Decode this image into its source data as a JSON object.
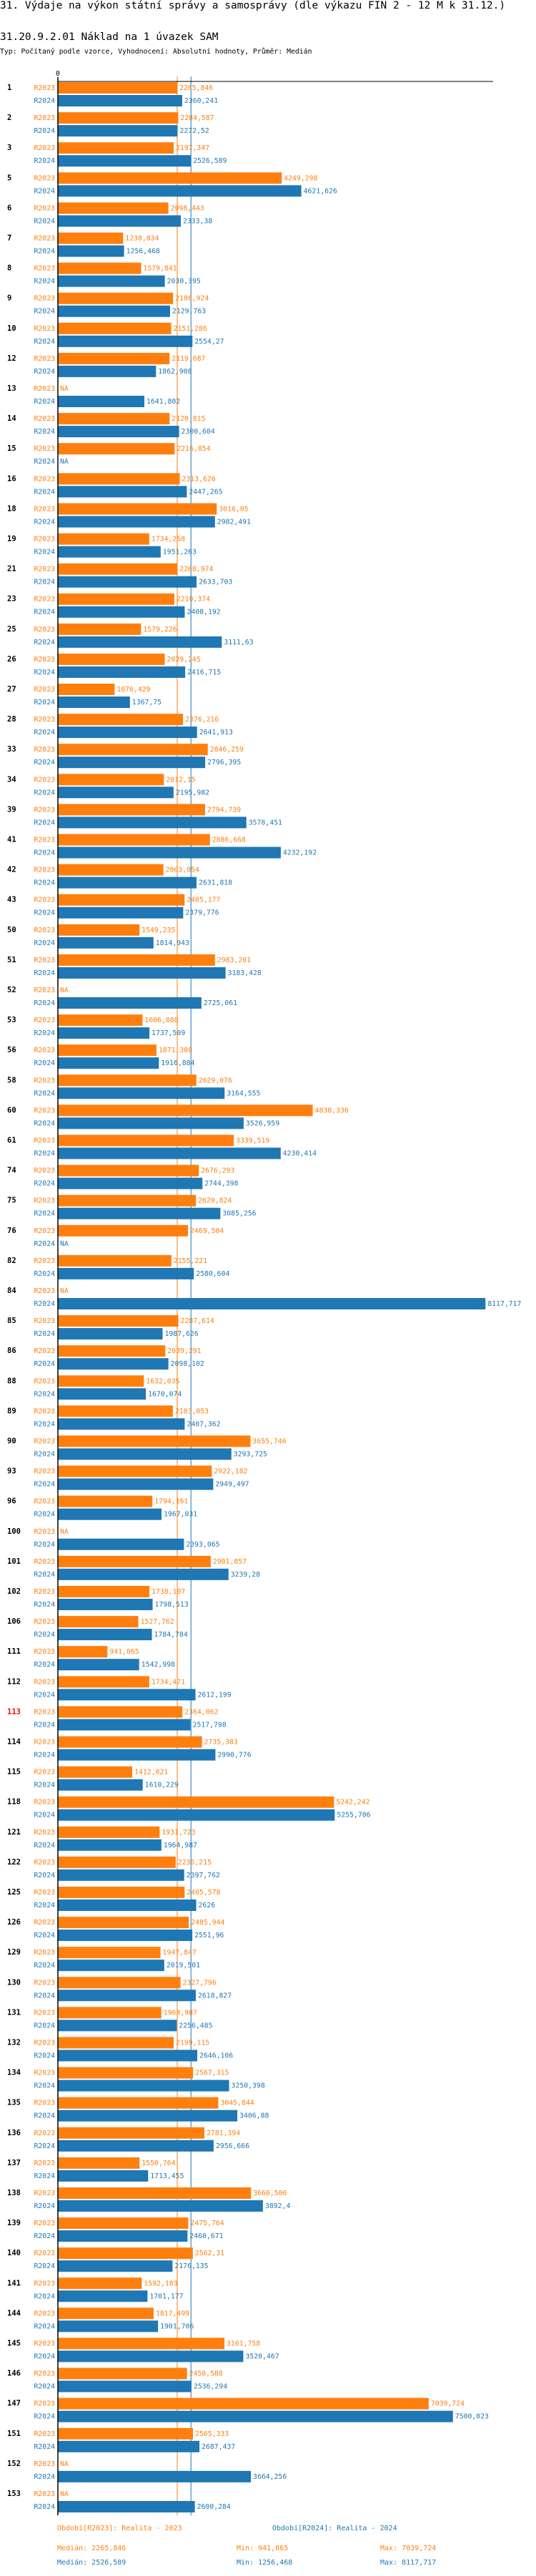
{
  "header": {
    "title": "31. Výdaje na výkon státní správy a samosprávy (dle výkazu FIN 2 - 12 M k 31.12.)",
    "subtitle": "31.20.9.2.01 Náklad na 1 úvazek SAM",
    "type_line": "Typ: Počítaný podle vzorce, Vyhodnocení: Absolutní hodnoty, Průměr: Medián"
  },
  "colors": {
    "R2023": "#ff7f0e",
    "R2024": "#1f77b4",
    "highlight": "#ff0000"
  },
  "legend": {
    "r2023": "Období[R2023]: Realita - 2023",
    "r2024": "Období[R2024]: Realita - 2024",
    "r2023_median": "Medián: 2265,846",
    "r2023_min": "Min: 941,065",
    "r2023_max": "Max: 7039,724",
    "r2024_median": "Medián: 2526,589",
    "r2024_min": "Min: 1256,468",
    "r2024_max": "Max: 8117,717"
  },
  "chart_data": {
    "type": "bar",
    "orientation": "horizontal",
    "zero_label": "0",
    "na_label": "NA",
    "highlight_category": "113",
    "medians": {
      "R2023": 2265.846,
      "R2024": 2526.589
    },
    "xlim": [
      0,
      8117.717
    ],
    "grid": false,
    "legend_position": "bottom",
    "categories": [
      "1",
      "2",
      "3",
      "5",
      "6",
      "7",
      "8",
      "9",
      "10",
      "12",
      "13",
      "14",
      "15",
      "16",
      "18",
      "19",
      "21",
      "23",
      "25",
      "26",
      "27",
      "28",
      "33",
      "34",
      "39",
      "41",
      "42",
      "43",
      "50",
      "51",
      "52",
      "53",
      "56",
      "58",
      "60",
      "61",
      "74",
      "75",
      "76",
      "82",
      "84",
      "85",
      "86",
      "88",
      "89",
      "90",
      "93",
      "96",
      "100",
      "101",
      "102",
      "106",
      "111",
      "112",
      "113",
      "114",
      "115",
      "118",
      "121",
      "122",
      "125",
      "126",
      "129",
      "130",
      "131",
      "132",
      "134",
      "135",
      "136",
      "137",
      "138",
      "139",
      "140",
      "141",
      "144",
      "145",
      "146",
      "147",
      "151",
      "152",
      "153"
    ],
    "series": [
      {
        "name": "R2023",
        "values": [
          2265.846,
          2284.587,
          2197.347,
          4249.298,
          2098.443,
          1238.834,
          1579.841,
          2186.924,
          2151.286,
          2119.687,
          null,
          2120.815,
          2216.854,
          2313.626,
          3016.05,
          1734.258,
          2268.974,
          2210.374,
          1579.226,
          2029.245,
          1076.429,
          2376.216,
          2846.259,
          2012.15,
          2794.739,
          2886.668,
          2003.054,
          2405.177,
          1549.235,
          2983.201,
          null,
          1606.888,
          1871.308,
          2629.076,
          4838.336,
          3339.519,
          2676.293,
          2620.824,
          2469.504,
          2155.221,
          null,
          2287.614,
          2039.291,
          1632.035,
          2183.053,
          3655.746,
          2922.182,
          1794.161,
          null,
          2901.857,
          1738.197,
          1527.762,
          941.065,
          1734.471,
          2364.062,
          2735.383,
          1412.021,
          5242.242,
          1931.723,
          2236.215,
          2405.578,
          2485.944,
          1947.847,
          2327.796,
          1963.987,
          2199.115,
          2567.315,
          3045.844,
          2781.394,
          1550.764,
          3666.506,
          2475.764,
          2562.31,
          1592.183,
          1817.499,
          3161.758,
          2450.588,
          7039.724,
          2565.333,
          null,
          null
        ]
      },
      {
        "name": "R2024",
        "values": [
          2360.241,
          2272.52,
          2526.589,
          4621.626,
          2333.38,
          1256.468,
          2030.395,
          2129.763,
          2554.27,
          1862.908,
          1641.802,
          2300.604,
          null,
          2447.265,
          2982.491,
          1951.263,
          2633.703,
          2408.192,
          3111.63,
          2416.715,
          1367.75,
          2641.913,
          2796.395,
          2195.982,
          3578.451,
          4232.192,
          2631.818,
          2379.776,
          1814.943,
          3183.428,
          2725.061,
          1737.509,
          1916.884,
          3164.555,
          3526.959,
          4230.414,
          2744.398,
          3085.256,
          null,
          2580.604,
          8117.717,
          1987.626,
          2098.102,
          1670.074,
          2407.362,
          3293.725,
          2949.497,
          1967.031,
          2393.065,
          3239.28,
          1798.513,
          1784.784,
          1542.998,
          2612.199,
          2517.798,
          2990.776,
          1610.229,
          5255.706,
          1964.987,
          2397.762,
          2626,
          2551.96,
          2019.501,
          2618.827,
          2256.485,
          2646.106,
          3250.398,
          3406.88,
          2956.666,
          1713.455,
          3892.4,
          2460.671,
          2176.135,
          1701.177,
          1901.706,
          3520.467,
          2536.294,
          7500.023,
          2687.437,
          3664.256,
          2600.284
        ]
      }
    ]
  }
}
